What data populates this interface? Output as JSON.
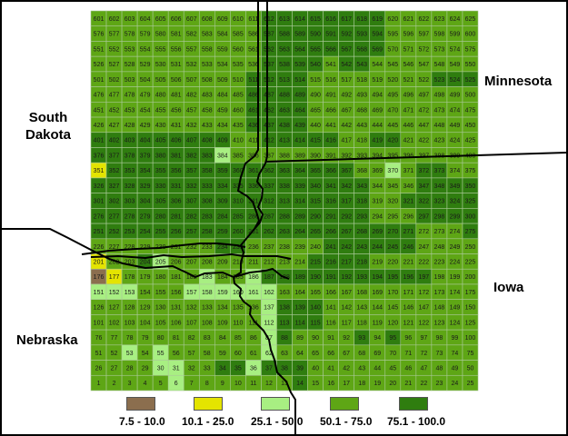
{
  "map": {
    "colors": {
      "brown": "#8b6e4e",
      "yellow": "#e4e400",
      "lightgreen": "#a8ef82",
      "midgreen": "#5ea615",
      "darkgreen": "#2f7d0f",
      "border": "#000000",
      "gridline": "#aac998"
    },
    "grid": {
      "cols": 25,
      "rows": 25,
      "first_cell_number": 1,
      "last_cell_number": 625
    },
    "cell_class_default": "darkgreen",
    "cell_class_overrides": {
      "176": "brown",
      "201": "yellow",
      "177": "yellow",
      "351": "yellow",
      "384": "lightgreen",
      "205": "lightgreen",
      "151": "lightgreen",
      "152": "lightgreen",
      "153": "lightgreen",
      "157": "lightgreen",
      "158": "lightgreen",
      "159": "lightgreen",
      "160": "lightgreen",
      "161": "lightgreen",
      "162": "lightgreen",
      "183": "lightgreen",
      "186": "lightgreen",
      "370": "lightgreen",
      "53": "lightgreen",
      "55": "lightgreen",
      "30": "lightgreen",
      "31": "lightgreen",
      "6": "lightgreen",
      "137": "lightgreen",
      "112": "lightgreen",
      "87": "lightgreen",
      "62": "lightgreen",
      "36": "lightgreen",
      "202": "midgreen",
      "203": "midgreen",
      "178": "midgreen",
      "179": "midgreen",
      "180": "midgreen",
      "181": "midgreen",
      "154": "midgreen",
      "155": "midgreen",
      "156": "midgreen",
      "182": "midgreen",
      "184": "midgreen",
      "185": "midgreen",
      "209": "midgreen",
      "210": "midgreen",
      "211": "midgreen",
      "126": "midgreen",
      "127": "midgreen",
      "128": "midgreen",
      "129": "midgreen",
      "130": "midgreen",
      "131": "midgreen",
      "132": "midgreen",
      "133": "midgreen",
      "134": "midgreen",
      "135": "midgreen",
      "136": "midgreen",
      "101": "midgreen",
      "102": "midgreen",
      "103": "midgreen",
      "104": "midgreen",
      "105": "midgreen",
      "106": "midgreen",
      "107": "midgreen",
      "108": "midgreen",
      "109": "midgreen",
      "110": "midgreen",
      "111": "midgreen",
      "76": "midgreen",
      "77": "midgreen",
      "78": "midgreen",
      "79": "midgreen",
      "80": "midgreen",
      "81": "midgreen",
      "82": "midgreen",
      "83": "midgreen",
      "84": "midgreen",
      "85": "midgreen",
      "86": "midgreen",
      "51": "midgreen",
      "52": "midgreen",
      "54": "midgreen",
      "56": "midgreen",
      "57": "midgreen",
      "58": "midgreen",
      "59": "midgreen",
      "60": "midgreen",
      "61": "midgreen",
      "26": "midgreen",
      "27": "midgreen",
      "28": "midgreen",
      "29": "midgreen",
      "32": "midgreen",
      "33": "midgreen",
      "1": "midgreen",
      "2": "midgreen",
      "3": "midgreen",
      "4": "midgreen",
      "5": "midgreen",
      "7": "midgreen",
      "8": "midgreen",
      "9": "midgreen",
      "10": "midgreen",
      "11": "midgreen",
      "12": "midgreen",
      "13": "midgreen",
      "89": "midgreen",
      "90": "midgreen",
      "63": "midgreen",
      "64": "midgreen",
      "65": "midgreen",
      "226": "midgreen",
      "227": "midgreen",
      "228": "midgreen",
      "229": "midgreen",
      "230": "midgreen",
      "231": "midgreen",
      "232": "midgreen",
      "206": "midgreen",
      "207": "midgreen",
      "208": "midgreen",
      "233": "midgreen",
      "601": "midgreen",
      "602": "midgreen",
      "603": "midgreen",
      "604": "midgreen",
      "605": "midgreen",
      "606": "midgreen",
      "607": "midgreen",
      "608": "midgreen",
      "609": "midgreen",
      "610": "midgreen",
      "611": "midgreen",
      "576": "midgreen",
      "577": "midgreen",
      "578": "midgreen",
      "579": "midgreen",
      "580": "midgreen",
      "581": "midgreen",
      "582": "midgreen",
      "583": "midgreen",
      "584": "midgreen",
      "585": "midgreen",
      "586": "midgreen",
      "551": "midgreen",
      "552": "midgreen",
      "553": "midgreen",
      "554": "midgreen",
      "555": "midgreen",
      "556": "midgreen",
      "557": "midgreen",
      "558": "midgreen",
      "559": "midgreen",
      "560": "midgreen",
      "561": "midgreen",
      "526": "midgreen",
      "527": "midgreen",
      "528": "midgreen",
      "529": "midgreen",
      "530": "midgreen",
      "531": "midgreen",
      "532": "midgreen",
      "533": "midgreen",
      "534": "midgreen",
      "535": "midgreen",
      "536": "midgreen",
      "501": "midgreen",
      "502": "midgreen",
      "503": "midgreen",
      "504": "midgreen",
      "505": "midgreen",
      "506": "midgreen",
      "507": "midgreen",
      "508": "midgreen",
      "509": "midgreen",
      "510": "midgreen",
      "476": "midgreen",
      "477": "midgreen",
      "478": "midgreen",
      "479": "midgreen",
      "480": "midgreen",
      "481": "midgreen",
      "482": "midgreen",
      "483": "midgreen",
      "484": "midgreen",
      "485": "midgreen",
      "451": "midgreen",
      "452": "midgreen",
      "453": "midgreen",
      "454": "midgreen",
      "455": "midgreen",
      "456": "midgreen",
      "457": "midgreen",
      "458": "midgreen",
      "459": "midgreen",
      "460": "midgreen",
      "426": "midgreen",
      "427": "midgreen",
      "428": "midgreen",
      "429": "midgreen",
      "430": "midgreen",
      "431": "midgreen",
      "432": "midgreen",
      "433": "midgreen",
      "434": "midgreen",
      "435": "midgreen",
      "410": "midgreen",
      "411": "midgreen",
      "417": "midgreen",
      "418": "midgreen",
      "541": "midgreen",
      "544": "midgreen",
      "549": "midgreen",
      "550": "midgreen",
      "575": "midgreen",
      "600": "midgreen",
      "625": "midgreen",
      "624": "midgreen",
      "599": "midgreen",
      "574": "midgreen",
      "573": "midgreen",
      "444": "midgreen",
      "445": "midgreen",
      "470": "midgreen",
      "471": "midgreen",
      "395": "midgreen",
      "396": "midgreen",
      "397": "midgreen",
      "398": "midgreen",
      "399": "midgreen",
      "400": "midgreen",
      "374": "midgreen",
      "375": "midgreen",
      "368": "midgreen",
      "369": "midgreen",
      "371": "midgreen",
      "345": "midgreen",
      "346": "midgreen",
      "344": "midgreen",
      "319": "midgreen",
      "320": "midgreen",
      "294": "midgreen",
      "295": "midgreen",
      "296": "midgreen",
      "272": "midgreen",
      "273": "midgreen",
      "274": "midgreen",
      "247": "midgreen",
      "248": "midgreen",
      "249": "midgreen",
      "250": "midgreen",
      "225": "midgreen",
      "224": "midgreen",
      "223": "midgreen",
      "200": "midgreen",
      "199": "midgreen",
      "198": "midgreen",
      "175": "midgreen",
      "174": "midgreen",
      "173": "midgreen",
      "150": "midgreen",
      "149": "midgreen",
      "125": "midgreen",
      "124": "midgreen",
      "100": "midgreen",
      "99": "midgreen",
      "98": "midgreen",
      "75": "midgreen",
      "74": "midgreen",
      "73": "midgreen",
      "50": "midgreen",
      "49": "midgreen",
      "48": "midgreen",
      "47": "midgreen",
      "46": "midgreen",
      "45": "midgreen",
      "44": "midgreen",
      "43": "midgreen",
      "42": "midgreen",
      "41": "midgreen",
      "40": "midgreen",
      "25": "midgreen",
      "24": "midgreen",
      "23": "midgreen",
      "22": "midgreen",
      "21": "midgreen",
      "20": "midgreen",
      "19": "midgreen",
      "18": "midgreen",
      "17": "midgreen",
      "16": "midgreen",
      "15": "midgreen",
      "91": "midgreen",
      "92": "midgreen",
      "94": "midgreen",
      "96": "midgreen",
      "97": "midgreen",
      "66": "midgreen",
      "67": "midgreen",
      "68": "midgreen",
      "69": "midgreen",
      "70": "midgreen",
      "71": "midgreen",
      "72": "midgreen",
      "116": "midgreen",
      "117": "midgreen",
      "118": "midgreen",
      "119": "midgreen",
      "120": "midgreen",
      "121": "midgreen",
      "122": "midgreen",
      "123": "midgreen",
      "141": "midgreen",
      "142": "midgreen",
      "143": "midgreen",
      "144": "midgreen",
      "145": "midgreen",
      "146": "midgreen",
      "147": "midgreen",
      "148": "midgreen",
      "163": "midgreen",
      "164": "midgreen",
      "165": "midgreen",
      "166": "midgreen",
      "167": "midgreen",
      "168": "midgreen",
      "169": "midgreen",
      "170": "midgreen",
      "171": "midgreen",
      "172": "midgreen",
      "219": "midgreen",
      "220": "midgreen",
      "221": "midgreen",
      "222": "midgreen",
      "212": "midgreen",
      "213": "midgreen",
      "214": "midgreen",
      "236": "midgreen",
      "237": "midgreen",
      "238": "midgreen",
      "239": "midgreen",
      "240": "midgreen",
      "515": "midgreen",
      "516": "midgreen",
      "517": "midgreen",
      "518": "midgreen",
      "519": "midgreen",
      "520": "midgreen",
      "521": "midgreen",
      "522": "midgreen",
      "490": "midgreen",
      "491": "midgreen",
      "492": "midgreen",
      "493": "midgreen",
      "494": "midgreen",
      "495": "midgreen",
      "496": "midgreen",
      "497": "midgreen",
      "498": "midgreen",
      "499": "midgreen",
      "500": "midgreen",
      "465": "midgreen",
      "466": "midgreen",
      "467": "midgreen",
      "468": "midgreen",
      "469": "midgreen",
      "472": "midgreen",
      "473": "midgreen",
      "474": "midgreen",
      "475": "midgreen",
      "440": "midgreen",
      "441": "midgreen",
      "442": "midgreen",
      "443": "midgreen",
      "446": "midgreen",
      "447": "midgreen",
      "448": "midgreen",
      "449": "midgreen",
      "450": "midgreen",
      "421": "midgreen",
      "422": "midgreen",
      "423": "midgreen",
      "424": "midgreen",
      "425": "midgreen",
      "545": "midgreen",
      "546": "midgreen",
      "547": "midgreen",
      "548": "midgreen",
      "570": "midgreen",
      "571": "midgreen",
      "572": "midgreen",
      "595": "midgreen",
      "596": "midgreen",
      "597": "midgreen",
      "598": "midgreen",
      "620": "midgreen",
      "621": "midgreen",
      "622": "midgreen",
      "623": "midgreen",
      "385": "midgreen",
      "386": "midgreen",
      "387": "midgreen",
      "388": "midgreen",
      "389": "midgreen",
      "390": "midgreen",
      "391": "midgreen",
      "392": "midgreen",
      "393": "midgreen",
      "394": "midgreen"
    },
    "state_labels": {
      "south_dakota_line1": "South",
      "south_dakota_line2": "Dakota",
      "minnesota": "Minnesota",
      "iowa": "Iowa",
      "nebraska": "Nebraska"
    },
    "legend": [
      {
        "label": "7.5 - 10.0",
        "color": "#8b6e4e"
      },
      {
        "label": "10.1 - 25.0",
        "color": "#e4e400"
      },
      {
        "label": "25.1 - 50.0",
        "color": "#a8ef82"
      },
      {
        "label": "50.1 - 75.0",
        "color": "#5ea615"
      },
      {
        "label": "75.1 - 100.0",
        "color": "#2f7d0f"
      }
    ]
  }
}
